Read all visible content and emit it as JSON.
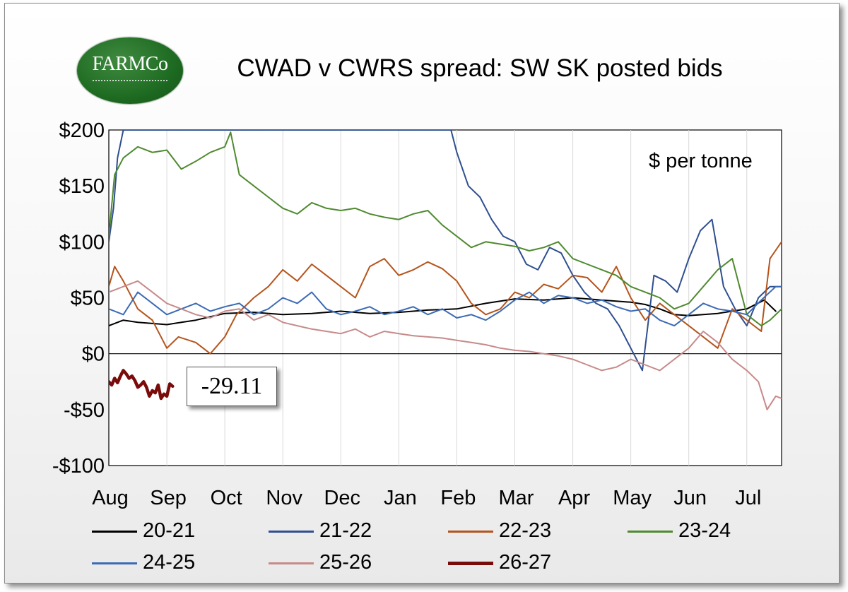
{
  "logo": {
    "text": "FARMCo",
    "color": "#1e6b22"
  },
  "chart_data": {
    "type": "line",
    "title": "CWAD v CWRS spread: SW SK posted bids",
    "unit_label": "$ per tonne",
    "xlabel": "",
    "ylabel": "",
    "x_tick_labels": [
      "Aug",
      "Sep",
      "Oct",
      "Nov",
      "Dec",
      "Jan",
      "Feb",
      "Mar",
      "Apr",
      "May",
      "Jun",
      "Jul"
    ],
    "x_units": "month index (0 = Aug 1, 12 = end of Jul)",
    "xlim": [
      0,
      11.6
    ],
    "ylim": [
      -100,
      200
    ],
    "y_ticks": [
      -100,
      -50,
      0,
      50,
      100,
      150,
      200
    ],
    "y_tick_labels": [
      "-$100",
      "-$50",
      "$0",
      "$50",
      "$100",
      "$150",
      "$200"
    ],
    "grid": "vertical gridlines at each month",
    "legend_position": "bottom",
    "annotation": {
      "text": "-29.11",
      "series": "26-27"
    },
    "series": [
      {
        "name": "20-21",
        "color": "#000000",
        "width": 2,
        "x": [
          0,
          0.25,
          0.5,
          0.75,
          1,
          1.25,
          1.5,
          1.75,
          2,
          2.5,
          3,
          3.5,
          4,
          4.5,
          5,
          5.5,
          6,
          6.5,
          7,
          7.5,
          8,
          8.5,
          9,
          9.25,
          9.5,
          9.75,
          10,
          10.5,
          11,
          11.3,
          11.5
        ],
        "y": [
          25,
          30,
          28,
          27,
          26,
          28,
          30,
          33,
          36,
          37,
          35,
          36,
          38,
          36,
          37,
          39,
          40,
          45,
          49,
          48,
          50,
          48,
          46,
          44,
          40,
          35,
          34,
          36,
          40,
          48,
          38
        ]
      },
      {
        "name": "21-22",
        "color": "#2f4f8f",
        "width": 2,
        "x": [
          0,
          0.08,
          0.15,
          0.25,
          0.3,
          5.9,
          6,
          6.2,
          6.4,
          6.6,
          6.8,
          7,
          7.2,
          7.4,
          7.6,
          7.8,
          8,
          8.2,
          8.4,
          8.6,
          8.8,
          9,
          9.2,
          9.4,
          9.6,
          9.8,
          10,
          10.2,
          10.4,
          10.6,
          10.8,
          11,
          11.2,
          11.4,
          11.6
        ],
        "y": [
          100,
          130,
          175,
          200,
          200,
          200,
          180,
          150,
          140,
          120,
          105,
          100,
          80,
          75,
          95,
          90,
          70,
          55,
          45,
          40,
          25,
          5,
          -15,
          70,
          65,
          55,
          85,
          110,
          120,
          60,
          40,
          25,
          50,
          60,
          60
        ]
      },
      {
        "name": "22-23",
        "color": "#b5541c",
        "width": 2,
        "x": [
          0,
          0.1,
          0.25,
          0.5,
          0.75,
          1,
          1.2,
          1.5,
          1.75,
          2,
          2.2,
          2.5,
          2.75,
          3,
          3.25,
          3.5,
          3.75,
          4,
          4.25,
          4.5,
          4.75,
          5,
          5.25,
          5.5,
          5.75,
          6,
          6.25,
          6.5,
          6.75,
          7,
          7.25,
          7.5,
          7.75,
          8,
          8.25,
          8.5,
          8.75,
          9,
          9.25,
          9.5,
          9.75,
          10,
          10.25,
          10.5,
          10.75,
          11,
          11.25,
          11.4,
          11.6
        ],
        "y": [
          60,
          78,
          65,
          40,
          30,
          5,
          15,
          10,
          0,
          15,
          35,
          50,
          60,
          75,
          65,
          80,
          70,
          60,
          50,
          78,
          85,
          70,
          75,
          82,
          76,
          65,
          45,
          35,
          40,
          55,
          50,
          62,
          58,
          70,
          68,
          55,
          78,
          50,
          30,
          45,
          35,
          25,
          15,
          5,
          40,
          30,
          20,
          85,
          100
        ]
      },
      {
        "name": "23-24",
        "color": "#4e8a2f",
        "width": 2,
        "x": [
          0,
          0.1,
          0.25,
          0.5,
          0.75,
          1,
          1.25,
          1.5,
          1.75,
          2,
          2.1,
          2.25,
          2.5,
          2.75,
          3,
          3.25,
          3.5,
          3.75,
          4,
          4.25,
          4.5,
          4.75,
          5,
          5.25,
          5.5,
          5.75,
          6,
          6.25,
          6.5,
          6.75,
          7,
          7.25,
          7.5,
          7.75,
          8,
          8.25,
          8.5,
          8.75,
          9,
          9.25,
          9.5,
          9.75,
          10,
          10.25,
          10.5,
          10.75,
          11,
          11.25,
          11.4,
          11.6
        ],
        "y": [
          105,
          160,
          175,
          185,
          180,
          182,
          165,
          172,
          180,
          185,
          198,
          160,
          150,
          140,
          130,
          125,
          135,
          130,
          128,
          130,
          125,
          122,
          120,
          125,
          128,
          115,
          105,
          95,
          100,
          98,
          96,
          92,
          95,
          100,
          85,
          80,
          75,
          70,
          60,
          55,
          50,
          40,
          45,
          60,
          75,
          85,
          35,
          25,
          30,
          40
        ]
      },
      {
        "name": "24-25",
        "color": "#3b6bb5",
        "width": 2,
        "x": [
          0,
          0.25,
          0.5,
          0.75,
          1,
          1.25,
          1.5,
          1.75,
          2,
          2.25,
          2.5,
          2.75,
          3,
          3.25,
          3.5,
          3.75,
          4,
          4.25,
          4.5,
          4.75,
          5,
          5.25,
          5.5,
          5.75,
          6,
          6.25,
          6.5,
          6.75,
          7,
          7.25,
          7.5,
          7.75,
          8,
          8.25,
          8.5,
          8.75,
          9,
          9.25,
          9.5,
          9.75,
          10,
          10.25,
          10.5,
          10.75,
          11,
          11.25,
          11.5,
          11.6
        ],
        "y": [
          40,
          35,
          55,
          45,
          35,
          40,
          45,
          38,
          42,
          45,
          35,
          40,
          50,
          45,
          55,
          40,
          35,
          38,
          42,
          35,
          38,
          42,
          35,
          40,
          32,
          35,
          30,
          38,
          48,
          55,
          45,
          52,
          50,
          45,
          48,
          42,
          38,
          40,
          30,
          25,
          35,
          45,
          40,
          38,
          35,
          48,
          60,
          60
        ]
      },
      {
        "name": "25-26",
        "color": "#c78a8a",
        "width": 2,
        "x": [
          0,
          0.25,
          0.5,
          0.75,
          1,
          1.25,
          1.5,
          1.75,
          2,
          2.25,
          2.5,
          2.75,
          3,
          3.25,
          3.5,
          3.75,
          4,
          4.25,
          4.5,
          4.75,
          5,
          5.25,
          5.5,
          5.75,
          6,
          6.25,
          6.5,
          6.75,
          7,
          7.25,
          7.5,
          7.75,
          8,
          8.25,
          8.5,
          8.75,
          9,
          9.25,
          9.5,
          9.75,
          10,
          10.25,
          10.5,
          10.75,
          11,
          11.2,
          11.35,
          11.5,
          11.6
        ],
        "y": [
          55,
          60,
          65,
          55,
          45,
          40,
          35,
          32,
          38,
          40,
          30,
          35,
          28,
          25,
          22,
          20,
          18,
          22,
          15,
          20,
          18,
          16,
          15,
          14,
          12,
          10,
          8,
          5,
          3,
          2,
          0,
          -2,
          -5,
          -10,
          -15,
          -12,
          -5,
          -10,
          -15,
          -5,
          5,
          20,
          10,
          -5,
          -15,
          -25,
          -50,
          -38,
          -40
        ]
      },
      {
        "name": "26-27",
        "color": "#7a0b0b",
        "width": 4.5,
        "x": [
          0,
          0.05,
          0.1,
          0.15,
          0.2,
          0.25,
          0.3,
          0.35,
          0.4,
          0.45,
          0.5,
          0.55,
          0.6,
          0.65,
          0.7,
          0.75,
          0.8,
          0.85,
          0.9,
          0.95,
          1.0,
          1.05,
          1.1
        ],
        "y": [
          -25,
          -28,
          -22,
          -26,
          -20,
          -15,
          -18,
          -22,
          -20,
          -24,
          -30,
          -28,
          -25,
          -30,
          -38,
          -33,
          -35,
          -28,
          -40,
          -36,
          -38,
          -27,
          -29.11
        ]
      }
    ]
  }
}
